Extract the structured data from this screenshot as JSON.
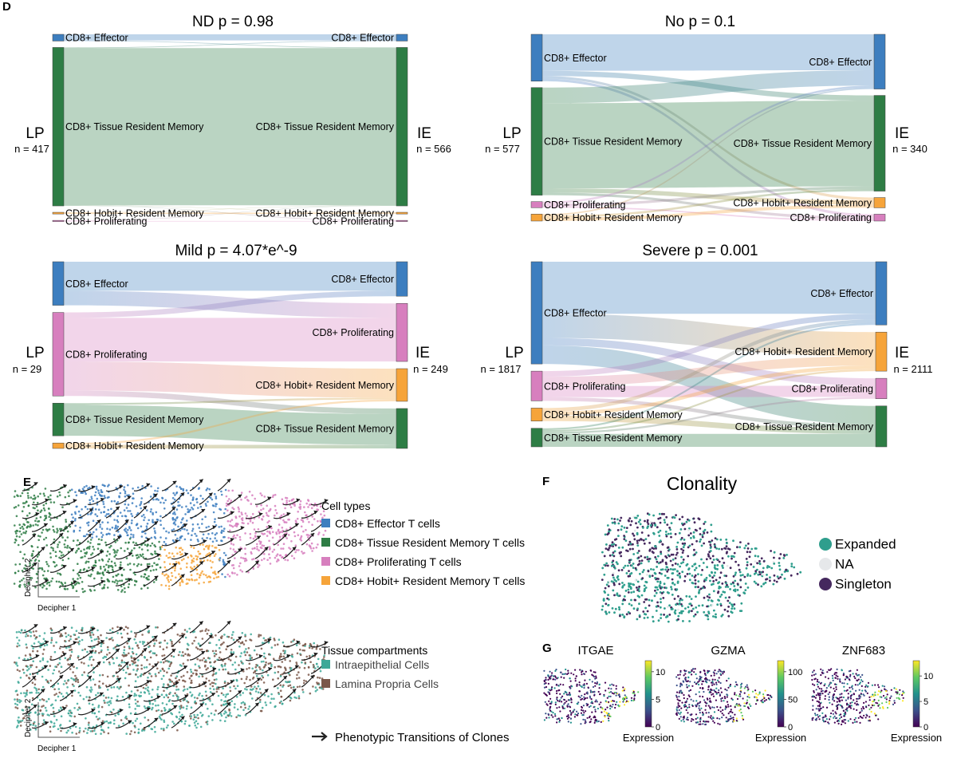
{
  "panel_letters": {
    "d": "D",
    "e": "E",
    "f": "F",
    "g": "G"
  },
  "colors": {
    "effector": "#3d7ebf",
    "trm": "#2e7d45",
    "proliferating": "#d77fbe",
    "hobit": "#f6a43a",
    "ie_cells": "#3ea898",
    "lp_cells": "#7a5749",
    "clone_expanded": "#2f9e8d",
    "clone_na": "#e6e8ea",
    "clone_singleton": "#45285e"
  },
  "chart_data": [
    {
      "type": "sankey",
      "id": "nd",
      "title": "ND p = 0.98",
      "left": {
        "label": "LP",
        "n": "n = 417"
      },
      "right": {
        "label": "IE",
        "n": "n = 566"
      },
      "left_nodes": [
        {
          "key": "effector",
          "label": "CD8+ Effector",
          "value": 4
        },
        {
          "key": "trm",
          "label": "CD8+ Tissue Resident Memory",
          "value": 94
        },
        {
          "key": "hobit",
          "label": "CD8+ Hobit+ Resident Memory",
          "value": 1
        },
        {
          "key": "proliferating",
          "label": "CD8+ Proliferating",
          "value": 0.4
        }
      ],
      "right_nodes": [
        {
          "key": "effector",
          "label": "CD8+ Effector",
          "value": 4
        },
        {
          "key": "trm",
          "label": "CD8+ Tissue Resident Memory",
          "value": 94
        },
        {
          "key": "hobit",
          "label": "CD8+ Hobit+ Resident Memory",
          "value": 1
        },
        {
          "key": "proliferating",
          "label": "CD8+ Proliferating",
          "value": 0.4
        }
      ],
      "flows": [
        {
          "from": "effector",
          "to": "effector",
          "value": 3.6
        },
        {
          "from": "effector",
          "to": "trm",
          "value": 0.4
        },
        {
          "from": "trm",
          "to": "effector",
          "value": 0.4
        },
        {
          "from": "trm",
          "to": "trm",
          "value": 93.2
        },
        {
          "from": "trm",
          "to": "hobit",
          "value": 0.2
        },
        {
          "from": "trm",
          "to": "proliferating",
          "value": 0.2
        },
        {
          "from": "hobit",
          "to": "hobit",
          "value": 0.8
        },
        {
          "from": "hobit",
          "to": "trm",
          "value": 0.2
        },
        {
          "from": "proliferating",
          "to": "proliferating",
          "value": 0.2
        },
        {
          "from": "proliferating",
          "to": "trm",
          "value": 0.2
        }
      ]
    },
    {
      "type": "sankey",
      "id": "no",
      "title": "No p = 0.1",
      "left": {
        "label": "LP",
        "n": "n = 577"
      },
      "right": {
        "label": "IE",
        "n": "n = 340"
      },
      "left_nodes": [
        {
          "key": "effector",
          "label": "CD8+ Effector",
          "value": 27
        },
        {
          "key": "trm",
          "label": "CD8+ Tissue Resident Memory",
          "value": 62
        },
        {
          "key": "proliferating",
          "label": "CD8+ Proliferating",
          "value": 3.5
        },
        {
          "key": "hobit",
          "label": "CD8+ Hobit+ Resident Memory",
          "value": 4
        }
      ],
      "right_nodes": [
        {
          "key": "effector",
          "label": "CD8+ Effector",
          "value": 32
        },
        {
          "key": "trm",
          "label": "CD8+ Tissue Resident Memory",
          "value": 56
        },
        {
          "key": "hobit",
          "label": "CD8+ Hobit+ Resident Memory",
          "value": 6
        },
        {
          "key": "proliferating",
          "label": "CD8+ Proliferating",
          "value": 4
        }
      ],
      "flows": [
        {
          "from": "effector",
          "to": "effector",
          "value": 21
        },
        {
          "from": "effector",
          "to": "trm",
          "value": 3
        },
        {
          "from": "effector",
          "to": "hobit",
          "value": 1.5
        },
        {
          "from": "effector",
          "to": "proliferating",
          "value": 1.5
        },
        {
          "from": "trm",
          "to": "effector",
          "value": 9
        },
        {
          "from": "trm",
          "to": "trm",
          "value": 49
        },
        {
          "from": "trm",
          "to": "hobit",
          "value": 2.5
        },
        {
          "from": "trm",
          "to": "proliferating",
          "value": 1.5
        },
        {
          "from": "proliferating",
          "to": "effector",
          "value": 1.2
        },
        {
          "from": "proliferating",
          "to": "trm",
          "value": 1.5
        },
        {
          "from": "proliferating",
          "to": "proliferating",
          "value": 0.8
        },
        {
          "from": "hobit",
          "to": "effector",
          "value": 0.8
        },
        {
          "from": "hobit",
          "to": "trm",
          "value": 1.2
        },
        {
          "from": "hobit",
          "to": "hobit",
          "value": 1.8
        }
      ]
    },
    {
      "type": "sankey",
      "id": "mild",
      "title": "Mild p = 4.07*e^-9",
      "left": {
        "label": "LP",
        "n": "n = 29"
      },
      "right": {
        "label": "IE",
        "n": "n = 249"
      },
      "left_nodes": [
        {
          "key": "effector",
          "label": "CD8+ Effector",
          "value": 24
        },
        {
          "key": "proliferating",
          "label": "CD8+ Proliferating",
          "value": 46
        },
        {
          "key": "trm",
          "label": "CD8+ Tissue Resident Memory",
          "value": 18
        },
        {
          "key": "hobit",
          "label": "CD8+ Hobit+ Resident Memory",
          "value": 3
        }
      ],
      "right_nodes": [
        {
          "key": "effector",
          "label": "CD8+ Effector",
          "value": 19
        },
        {
          "key": "proliferating",
          "label": "CD8+ Proliferating",
          "value": 32
        },
        {
          "key": "hobit",
          "label": "CD8+ Hobit+ Resident Memory",
          "value": 18
        },
        {
          "key": "trm",
          "label": "CD8+ Tissue Resident Memory",
          "value": 22
        }
      ],
      "flows": [
        {
          "from": "effector",
          "to": "effector",
          "value": 16
        },
        {
          "from": "effector",
          "to": "proliferating",
          "value": 8
        },
        {
          "from": "proliferating",
          "to": "effector",
          "value": 3
        },
        {
          "from": "proliferating",
          "to": "proliferating",
          "value": 24
        },
        {
          "from": "proliferating",
          "to": "hobit",
          "value": 16
        },
        {
          "from": "proliferating",
          "to": "trm",
          "value": 3
        },
        {
          "from": "trm",
          "to": "hobit",
          "value": 1
        },
        {
          "from": "trm",
          "to": "trm",
          "value": 17
        },
        {
          "from": "hobit",
          "to": "hobit",
          "value": 1
        },
        {
          "from": "hobit",
          "to": "trm",
          "value": 2
        }
      ]
    },
    {
      "type": "sankey",
      "id": "severe",
      "title": "Severe p = 0.001",
      "left": {
        "label": "LP",
        "n": "n = 1817"
      },
      "right": {
        "label": "IE",
        "n": "n = 2111"
      },
      "left_nodes": [
        {
          "key": "effector",
          "label": "CD8+ Effector",
          "value": 55
        },
        {
          "key": "proliferating",
          "label": "CD8+ Proliferating",
          "value": 16
        },
        {
          "key": "hobit",
          "label": "CD8+ Hobit+ Resident Memory",
          "value": 7
        },
        {
          "key": "trm",
          "label": "CD8+ Tissue Resident Memory",
          "value": 10
        }
      ],
      "right_nodes": [
        {
          "key": "effector",
          "label": "CD8+ Effector",
          "value": 34
        },
        {
          "key": "hobit",
          "label": "CD8+ Hobit+ Resident Memory",
          "value": 21
        },
        {
          "key": "proliferating",
          "label": "CD8+ Proliferating",
          "value": 11
        },
        {
          "key": "trm",
          "label": "CD8+ Tissue Resident Memory",
          "value": 22
        }
      ],
      "flows": [
        {
          "from": "effector",
          "to": "effector",
          "value": 28
        },
        {
          "from": "effector",
          "to": "hobit",
          "value": 13
        },
        {
          "from": "effector",
          "to": "proliferating",
          "value": 4
        },
        {
          "from": "effector",
          "to": "trm",
          "value": 10
        },
        {
          "from": "proliferating",
          "to": "effector",
          "value": 3
        },
        {
          "from": "proliferating",
          "to": "hobit",
          "value": 5
        },
        {
          "from": "proliferating",
          "to": "proliferating",
          "value": 6
        },
        {
          "from": "proliferating",
          "to": "trm",
          "value": 2
        },
        {
          "from": "hobit",
          "to": "effector",
          "value": 2
        },
        {
          "from": "hobit",
          "to": "hobit",
          "value": 2
        },
        {
          "from": "hobit",
          "to": "trm",
          "value": 3
        },
        {
          "from": "trm",
          "to": "effector",
          "value": 1
        },
        {
          "from": "trm",
          "to": "hobit",
          "value": 1
        },
        {
          "from": "trm",
          "to": "proliferating",
          "value": 1
        },
        {
          "from": "trm",
          "to": "trm",
          "value": 7
        }
      ]
    },
    {
      "type": "scatter",
      "id": "embed_celltypes",
      "xlabel": "Decipher 1",
      "ylabel": "Decipher 2",
      "legend_title": "Cell types",
      "legend": [
        {
          "key": "effector",
          "label": "CD8+ Effector T cells"
        },
        {
          "key": "trm",
          "label": "CD8+ Tissue Resident Memory T cells"
        },
        {
          "key": "proliferating",
          "label": "CD8+ Proliferating T cells"
        },
        {
          "key": "hobit",
          "label": "CD8+ Hobit+ Resident Memory T cells"
        }
      ]
    },
    {
      "type": "scatter",
      "id": "embed_tissue",
      "xlabel": "Decipher 1",
      "ylabel": "Decipher 2",
      "legend_title": "Tissue compartments",
      "legend": [
        {
          "key": "ie_cells",
          "label": "Intraepithelial Cells"
        },
        {
          "key": "lp_cells",
          "label": "Lamina Propria Cells"
        }
      ],
      "arrow_label": "Phenotypic Transitions of Clones"
    },
    {
      "type": "scatter",
      "id": "clonality",
      "title": "Clonality",
      "legend": [
        {
          "key": "clone_expanded",
          "label": "Expanded"
        },
        {
          "key": "clone_na",
          "label": "NA"
        },
        {
          "key": "clone_singleton",
          "label": "Singleton"
        }
      ]
    },
    {
      "type": "scatter",
      "id": "expression",
      "colorbar_label": "Expression",
      "plots": [
        {
          "gene": "ITGAE",
          "ticks": [
            "10",
            "5",
            "0"
          ],
          "range": [
            0,
            12
          ]
        },
        {
          "gene": "GZMA",
          "ticks": [
            "100",
            "50",
            "0"
          ],
          "range": [
            0,
            120
          ]
        },
        {
          "gene": "ZNF683",
          "ticks": [
            "10",
            "5",
            "0"
          ],
          "range": [
            0,
            13
          ]
        }
      ]
    }
  ]
}
